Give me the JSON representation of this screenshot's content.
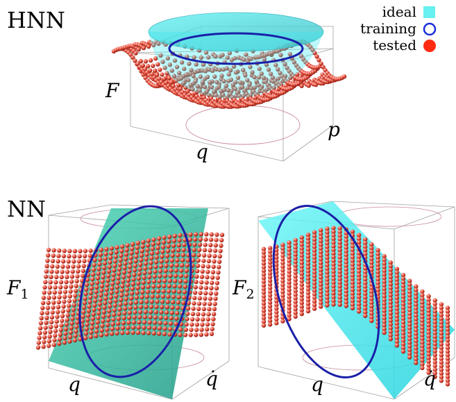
{
  "panels": {
    "hnn": {
      "label": "HNN",
      "axis_z": "F",
      "axis_x": "q",
      "axis_y": "p"
    },
    "nn_left": {
      "label": "NN",
      "axis_z": "F",
      "axis_z_sub": "1",
      "axis_x": "q",
      "axis_y": "q̇"
    },
    "nn_right": {
      "axis_z": "F",
      "axis_z_sub": "2",
      "axis_x": "q",
      "axis_y": "q̇"
    }
  },
  "legend": {
    "items": [
      {
        "label": "ideal",
        "color": "#66f0ef",
        "marker": "square"
      },
      {
        "label": "training",
        "color": "#1a2fd8",
        "marker": "ring"
      },
      {
        "label": "tested",
        "color": "#ff2a12",
        "marker": "disc"
      }
    ]
  },
  "colors": {
    "ideal_surface": "#3fe9ee",
    "ideal_surface_nn_left": "#2fc0a0",
    "training_curve": "#1a1fa8",
    "tested_spheres": "#e8453a",
    "box_edges": "#9a9a9a",
    "projection_circle": "#c98a9a"
  }
}
